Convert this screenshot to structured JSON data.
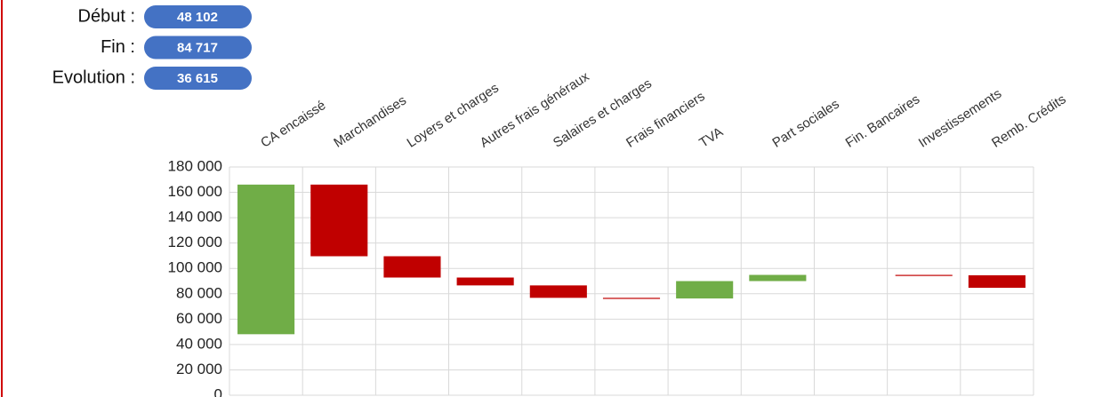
{
  "chart_data": {
    "type": "waterfall",
    "summary": [
      {
        "label": "Début :",
        "value": 48102,
        "value_label": "48 102"
      },
      {
        "label": "Fin :",
        "value": 84717,
        "value_label": "84 717"
      },
      {
        "label": "Evolution :",
        "value": 36615,
        "value_label": "36 615"
      }
    ],
    "categories": [
      "CA encaissé",
      "Marchandises",
      "Loyers et charges",
      "Autres frais généraux",
      "Salaires et charges",
      "Frais financiers",
      "TVA",
      "Part sociales",
      "Fin. Bancaires",
      "Investissements",
      "Remb. Crédits"
    ],
    "values": [
      118000,
      -56500,
      -16800,
      -6200,
      -9800,
      -500,
      13700,
      4900,
      0,
      -300,
      -9885
    ],
    "colors": {
      "increase": "#70ad47",
      "decrease": "#c00000"
    },
    "ylim": [
      0,
      180000
    ],
    "yticks": [
      0,
      {
        "value": 20000,
        "label": "20 000"
      },
      {
        "value": 40000,
        "label": "40 000"
      },
      {
        "value": 60000,
        "label": "60 000"
      },
      {
        "value": 80000,
        "label": "80 000"
      },
      {
        "value": 100000,
        "label": "100 000"
      },
      {
        "value": 120000,
        "label": "120 000"
      },
      {
        "value": 140000,
        "label": "140 000"
      },
      {
        "value": 160000,
        "label": "160 000"
      },
      {
        "value": 180000,
        "label": "180 000"
      }
    ],
    "grid": true
  }
}
